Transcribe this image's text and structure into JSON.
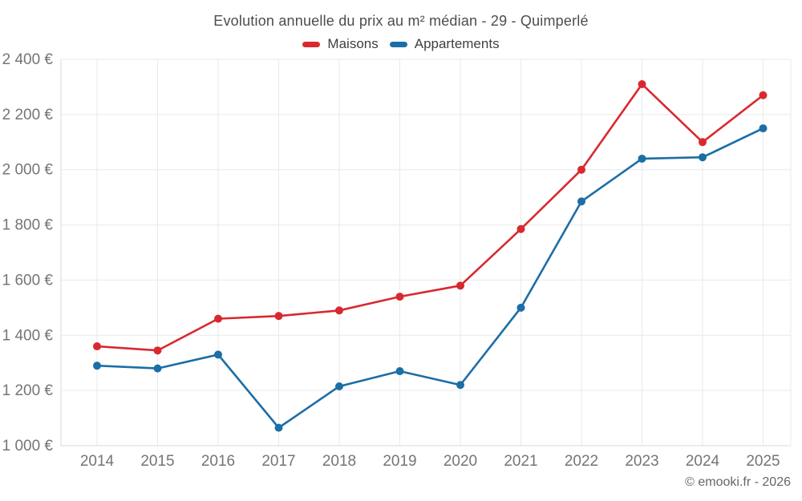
{
  "title": "Evolution annuelle du prix au m² médian - 29 - Quimperlé",
  "footer": "© emooki.fr - 2026",
  "chart_data": {
    "type": "line",
    "title": "Evolution annuelle du prix au m² médian - 29 - Quimperlé",
    "x": [
      "2014",
      "2015",
      "2016",
      "2017",
      "2018",
      "2019",
      "2020",
      "2021",
      "2022",
      "2023",
      "2024",
      "2025"
    ],
    "series": [
      {
        "name": "Maisons",
        "color": "#d8292f",
        "values": [
          1360,
          1345,
          1460,
          1470,
          1490,
          1540,
          1580,
          1785,
          2000,
          2310,
          2100,
          2270
        ]
      },
      {
        "name": "Appartements",
        "color": "#1c6ea6",
        "values": [
          1290,
          1280,
          1330,
          1065,
          1215,
          1270,
          1220,
          1500,
          1885,
          2040,
          2045,
          2150
        ]
      }
    ],
    "xlabel": "",
    "ylabel": "",
    "ylim": [
      1000,
      2400
    ],
    "ytick_step": 200,
    "ytick_suffix": "€",
    "grid": true,
    "legend_position": "top",
    "colors": {
      "grid": "#e9e9e9",
      "axis": "#d9d9d9",
      "tick_label": "#757575",
      "title": "#4d4d4d",
      "legend_label": "#3f3f3f",
      "footer": "#666666"
    }
  }
}
